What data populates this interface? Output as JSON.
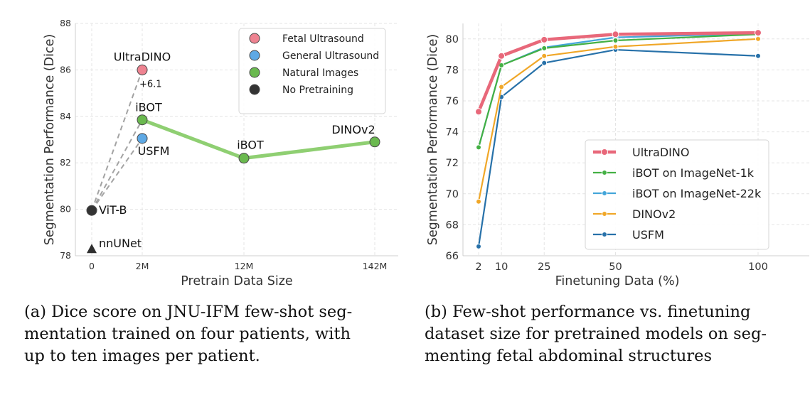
{
  "chart_data": [
    {
      "type": "scatter",
      "id": "a",
      "xlabel": "Pretrain Data Size",
      "ylabel": "Segmentation Performance (Dice)",
      "x_tick_labels": [
        "0",
        "2M",
        "12M",
        "142M"
      ],
      "y_ticks": [
        78,
        80,
        82,
        84,
        86,
        88
      ],
      "ylim": [
        78,
        88
      ],
      "grid": true,
      "legend_position": "top-right",
      "legend": [
        {
          "label": "Fetal Ultrasound",
          "color": "#ee8391"
        },
        {
          "label": "General Ultrasound",
          "color": "#5ea9e5"
        },
        {
          "label": "Natural Images",
          "color": "#6ab94f"
        },
        {
          "label": "No Pretraining",
          "color": "#333333"
        }
      ],
      "points": [
        {
          "label": "UltraDINO",
          "x": "2M",
          "y": 86.0,
          "category": "Fetal Ultrasound"
        },
        {
          "label": "iBOT",
          "x": "2M",
          "y": 83.85,
          "category": "Natural Images"
        },
        {
          "label": "USFM",
          "x": "2M",
          "y": 83.05,
          "category": "General Ultrasound"
        },
        {
          "label": "iBOT",
          "x": "12M",
          "y": 82.2,
          "category": "Natural Images"
        },
        {
          "label": "DINOv2",
          "x": "142M",
          "y": 82.9,
          "category": "Natural Images"
        },
        {
          "label": "ViT-B",
          "x": "0",
          "y": 79.95,
          "category": "No Pretraining"
        },
        {
          "label": "nnUNet",
          "x": "0",
          "y": 78.3,
          "category": "No Pretraining",
          "marker": "triangle"
        }
      ],
      "natural_images_line": [
        {
          "x": "2M",
          "y": 83.85
        },
        {
          "x": "12M",
          "y": 82.2
        },
        {
          "x": "142M",
          "y": 82.9
        }
      ],
      "annotation": "+6.1"
    },
    {
      "type": "line",
      "id": "b",
      "xlabel": "Finetuning Data (%)",
      "ylabel": "Segmentation Performance (Dice)",
      "x": [
        2,
        10,
        25,
        50,
        100
      ],
      "x_tick_labels": [
        "2",
        "10",
        "25",
        "50",
        "100"
      ],
      "y_ticks": [
        66,
        68,
        70,
        72,
        74,
        76,
        78,
        80
      ],
      "ylim": [
        66,
        81
      ],
      "grid": true,
      "legend_position": "bottom-right",
      "series": [
        {
          "name": "UltraDINO",
          "color": "#e8687a",
          "values": [
            75.3,
            78.9,
            79.95,
            80.3,
            80.4
          ]
        },
        {
          "name": "iBOT on ImageNet-1k",
          "color": "#44b044",
          "values": [
            73.0,
            78.3,
            79.4,
            79.9,
            80.3
          ]
        },
        {
          "name": "iBOT on ImageNet-22k",
          "color": "#43a5d9",
          "values": [
            73.0,
            78.3,
            79.45,
            80.1,
            80.35
          ]
        },
        {
          "name": "DINOv2",
          "color": "#f0a728",
          "values": [
            69.5,
            76.9,
            78.9,
            79.5,
            80.0
          ]
        },
        {
          "name": "USFM",
          "color": "#2771a9",
          "values": [
            66.6,
            76.25,
            78.45,
            79.3,
            78.9
          ]
        }
      ]
    }
  ],
  "captions": {
    "a": [
      "(a) Dice score on JNU-IFM few-shot seg-",
      "mentation trained on four patients, with",
      "up to ten images per patient."
    ],
    "b": [
      "(b) Few-shot performance vs. finetuning",
      "dataset size for pretrained models on seg-",
      "menting fetal abdominal structures"
    ]
  }
}
